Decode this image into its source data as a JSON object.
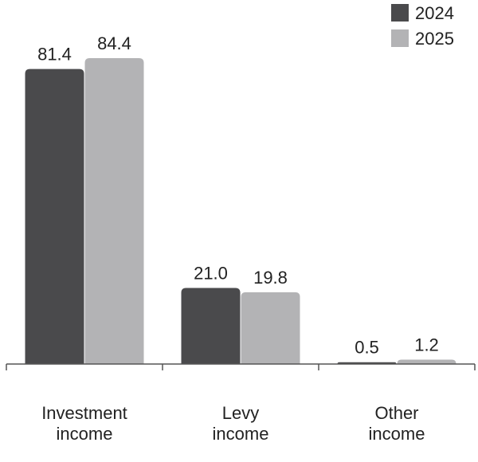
{
  "chart_data": {
    "type": "bar",
    "categories": [
      [
        "Investment",
        "income"
      ],
      [
        "Levy",
        "income"
      ],
      [
        "Other",
        "income"
      ]
    ],
    "series": [
      {
        "name": "2024",
        "color": "#4a4a4c",
        "values": [
          81.4,
          21.0,
          0.5
        ],
        "labels": [
          "81.4",
          "21.0",
          "0.5"
        ]
      },
      {
        "name": "2025",
        "color": "#b3b3b5",
        "values": [
          84.4,
          19.8,
          1.2
        ],
        "labels": [
          "84.4",
          "19.8",
          "1.2"
        ]
      }
    ],
    "ylim": [
      0,
      84.4
    ],
    "grid": false,
    "legend_position": "top-right",
    "title": "",
    "xlabel": "",
    "ylabel": ""
  }
}
